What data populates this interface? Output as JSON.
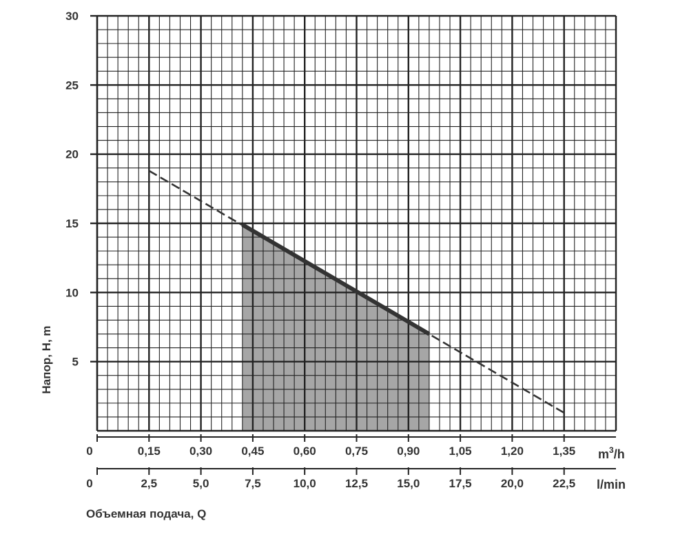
{
  "chart_data": {
    "type": "line",
    "title": "",
    "ylabel": "Напор, H, m",
    "xlabel": "Объемная подача, Q",
    "ylim": [
      0,
      30
    ],
    "y_ticks": [
      "5",
      "10",
      "15",
      "20",
      "25",
      "30"
    ],
    "y_tick_values": [
      5,
      10,
      15,
      20,
      25,
      30
    ],
    "x_m3h": {
      "unit_base": "m",
      "unit_sup": "3",
      "unit_tail": "/h",
      "ticks": [
        "0",
        "0,15",
        "0,30",
        "0,45",
        "0,60",
        "0,75",
        "0,90",
        "1,05",
        "1,20",
        "1,35"
      ],
      "values": [
        0,
        0.15,
        0.3,
        0.45,
        0.6,
        0.75,
        0.9,
        1.05,
        1.2,
        1.35
      ]
    },
    "x_lmin": {
      "unit": "l/min",
      "ticks": [
        "0",
        "2,5",
        "5,0",
        "7,5",
        "10,0",
        "12,5",
        "15,0",
        "17,5",
        "20,0",
        "22,5"
      ],
      "values": [
        0,
        2.5,
        5.0,
        7.5,
        10.0,
        12.5,
        15.0,
        17.5,
        20.0,
        22.5
      ]
    },
    "xlim_m3h": [
      0,
      1.5
    ],
    "series": [
      {
        "style": "dashed",
        "x_m3h": [
          0.15,
          1.35
        ],
        "y": [
          18.8,
          1.3
        ]
      },
      {
        "style": "solid",
        "x_m3h": [
          0.42,
          0.96
        ],
        "y": [
          14.9,
          7.0
        ]
      }
    ],
    "working_range": {
      "x_m3h": [
        0.42,
        0.96
      ],
      "fill": "#a6a6a6"
    },
    "grid": true,
    "colors": {
      "grid": "#222222",
      "line": "#333333",
      "fill": "#a6a6a6"
    }
  }
}
